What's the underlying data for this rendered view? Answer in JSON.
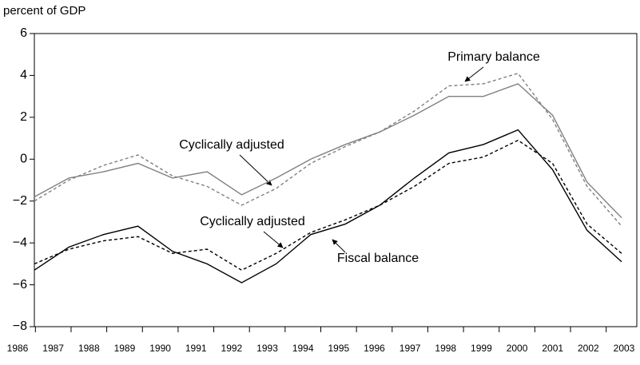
{
  "chart_data": {
    "type": "line",
    "y_label": "percent of GDP",
    "categories": [
      "1986",
      "1987",
      "1988",
      "1989",
      "1990",
      "1991",
      "1992",
      "1993",
      "1994",
      "1995",
      "1996",
      "1997",
      "1998",
      "1999",
      "2000",
      "2001",
      "2002",
      "2003"
    ],
    "series": [
      {
        "color": "#808080",
        "dash": false,
        "values": [
          -1.8,
          -0.9,
          -0.6,
          -0.2,
          -0.9,
          -0.6,
          -1.7,
          -0.9,
          0.0,
          0.7,
          1.3,
          2.1,
          3.0,
          3.0,
          3.6,
          2.1,
          -1.1,
          -2.8
        ]
      },
      {
        "color": "#808080",
        "dash": true,
        "values": [
          -2.0,
          -1.0,
          -0.3,
          0.2,
          -0.8,
          -1.3,
          -2.2,
          -1.4,
          -0.2,
          0.6,
          1.3,
          2.3,
          3.5,
          3.6,
          4.1,
          1.9,
          -1.3,
          -3.2
        ]
      },
      {
        "color": "#000000",
        "dash": false,
        "values": [
          -5.3,
          -4.2,
          -3.6,
          -3.2,
          -4.4,
          -5.0,
          -5.9,
          -5.0,
          -3.6,
          -3.1,
          -2.2,
          -0.9,
          0.3,
          0.7,
          1.4,
          -0.5,
          -3.4,
          -4.9
        ]
      },
      {
        "color": "#000000",
        "dash": true,
        "values": [
          -5.0,
          -4.3,
          -3.9,
          -3.7,
          -4.5,
          -4.3,
          -5.3,
          -4.5,
          -3.5,
          -2.9,
          -2.2,
          -1.3,
          -0.2,
          0.1,
          0.9,
          -0.2,
          -3.1,
          -4.5
        ]
      }
    ],
    "annotations": [
      "Primary balance",
      "Cyclically adjusted",
      "Cyclically adjusted",
      "Fiscal balance"
    ],
    "ylim": [
      -8,
      6
    ],
    "yticks": [
      {
        "value": -8,
        "label": "−8"
      },
      {
        "value": -6,
        "label": "−6"
      },
      {
        "value": -4,
        "label": "−4"
      },
      {
        "value": -2,
        "label": "−2"
      },
      0,
      2,
      4,
      6
    ]
  }
}
